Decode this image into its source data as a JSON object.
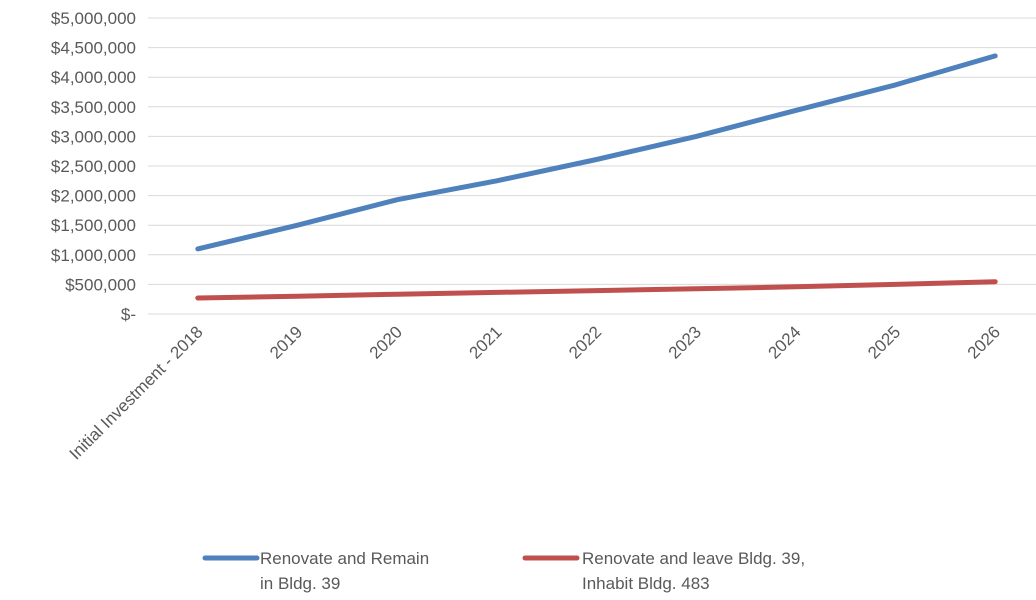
{
  "chart_data": {
    "type": "line",
    "title": "",
    "xlabel": "",
    "ylabel": "",
    "categories": [
      "Initial Investment - 2018",
      "2019",
      "2020",
      "2021",
      "2022",
      "2023",
      "2024",
      "2025",
      "2026"
    ],
    "y_ticks": [
      "$-",
      "$500,000",
      "$1,000,000",
      "$1,500,000",
      "$2,000,000",
      "$2,500,000",
      "$3,000,000",
      "$3,500,000",
      "$4,000,000",
      "$4,500,000",
      "$5,000,000"
    ],
    "ylim": [
      0,
      5000000
    ],
    "grid": true,
    "legend_position": "bottom",
    "series": [
      {
        "name": "Renovate and Remain in Bldg. 39",
        "name_lines": [
          "Renovate and Remain",
          "in Bldg. 39"
        ],
        "color": "#4F81BD",
        "values": [
          1100000,
          1500000,
          1930000,
          2250000,
          2610000,
          3000000,
          3440000,
          3870000,
          4360000
        ]
      },
      {
        "name": "Renovate and leave Bldg. 39, Inhabit Bldg. 483",
        "name_lines": [
          "Renovate and leave Bldg. 39,",
          "Inhabit Bldg. 483"
        ],
        "color": "#C0504D",
        "values": [
          270000,
          300000,
          335000,
          365000,
          395000,
          425000,
          460000,
          500000,
          545000
        ]
      }
    ]
  }
}
